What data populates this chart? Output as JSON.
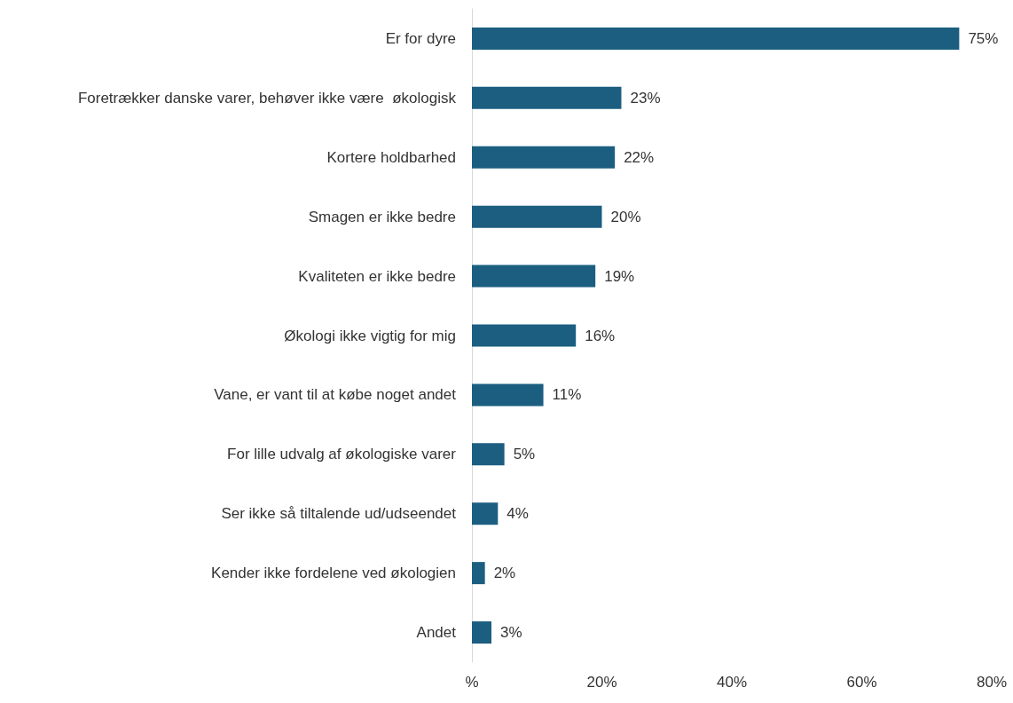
{
  "chart_data": {
    "type": "bar",
    "orientation": "horizontal",
    "categories": [
      "Er for dyre",
      "Foretrækker danske varer, behøver ikke være  økologisk",
      "Kortere holdbarhed",
      "Smagen er ikke bedre",
      "Kvaliteten er ikke bedre",
      "Økologi ikke vigtig for mig",
      "Vane, er vant til at købe noget andet",
      "For lille udvalg af økologiske varer",
      "Ser ikke så tiltalende ud/udseendet",
      "Kender ikke fordelene ved økologien",
      "Andet"
    ],
    "values": [
      75,
      23,
      22,
      20,
      19,
      16,
      11,
      5,
      4,
      2,
      3
    ],
    "value_labels": [
      "75%",
      "23%",
      "22%",
      "20%",
      "19%",
      "16%",
      "11%",
      "5%",
      "4%",
      "2%",
      "3%"
    ],
    "color": "#1b5e80",
    "xlim": [
      0,
      80
    ],
    "xticks": [
      {
        "value": 0,
        "label": "%"
      },
      {
        "value": 20,
        "label": "20%"
      },
      {
        "value": 40,
        "label": "40%"
      },
      {
        "value": 60,
        "label": "60%"
      },
      {
        "value": 80,
        "label": "80%"
      }
    ],
    "grid": false
  }
}
